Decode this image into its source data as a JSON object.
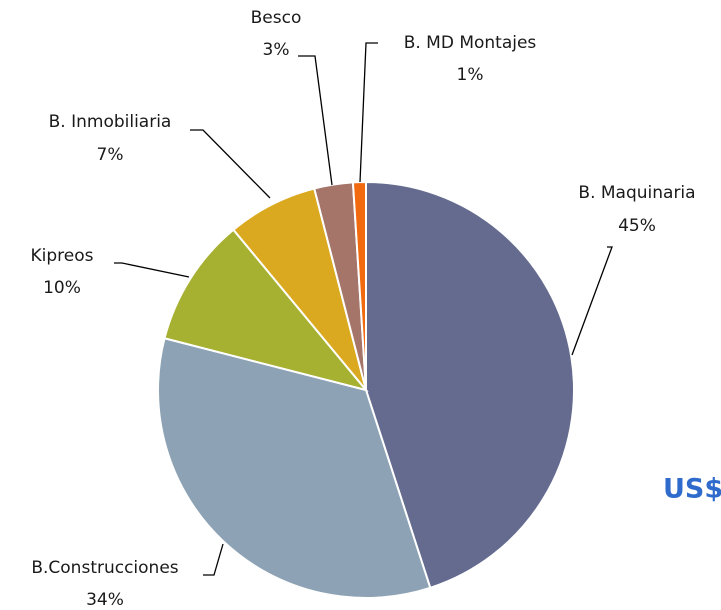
{
  "chart_data": {
    "type": "pie",
    "categories": [
      "B. Maquinaria",
      "B.Construcciones",
      "Kipreos",
      "B. Inmobiliaria",
      "Besco",
      "B. MD Montajes"
    ],
    "values": [
      45,
      34,
      10,
      7,
      3,
      1
    ],
    "value_labels": [
      "45%",
      "34%",
      "10%",
      "7%",
      "3%",
      "1%"
    ],
    "colors": [
      "#646b8e",
      "#8da3b5",
      "#a6b031",
      "#dba91f",
      "#a5756a",
      "#f26a10"
    ],
    "annotation": "US$"
  }
}
